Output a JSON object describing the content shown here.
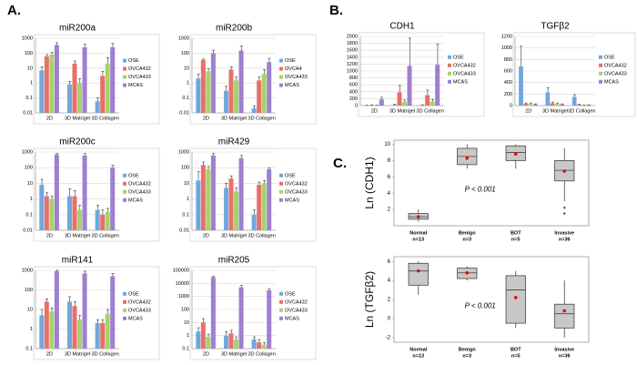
{
  "panel_labels": [
    "A.",
    "B.",
    "C."
  ],
  "chart_data": [
    {
      "type": "bar",
      "title": "miR200a",
      "log_scale": true,
      "grid": true,
      "categories": [
        "2D",
        "3D Matrigel",
        "3D Collagen"
      ],
      "ylim": [
        0.01,
        1000
      ],
      "yticks": [
        0.01,
        0.1,
        1,
        10,
        100,
        1000
      ],
      "series": [
        {
          "name": "OSE",
          "color": "#6fa8dc",
          "values": [
            7,
            0.8,
            0.06
          ],
          "errors": [
            5,
            0.5,
            0.04
          ]
        },
        {
          "name": "OVCA432",
          "color": "#e8706a",
          "values": [
            60,
            20,
            3
          ],
          "errors": [
            20,
            10,
            3
          ]
        },
        {
          "name": "OVCA433",
          "color": "#a8d26a",
          "values": [
            80,
            1,
            20
          ],
          "errors": [
            30,
            1,
            30
          ]
        },
        {
          "name": "MCAS",
          "color": "#9e7fd0",
          "values": [
            350,
            250,
            250
          ],
          "errors": [
            150,
            150,
            200
          ]
        }
      ]
    },
    {
      "type": "bar",
      "title": "miR200b",
      "log_scale": true,
      "grid": true,
      "categories": [
        "2D",
        "3D Matrigel",
        "3D Collagen"
      ],
      "ylim": [
        0.01,
        1000
      ],
      "yticks": [
        0.01,
        0.1,
        1,
        10,
        100,
        1000
      ],
      "series": [
        {
          "name": "OSE",
          "color": "#6fa8dc",
          "values": [
            2,
            0.3,
            0.02
          ],
          "errors": [
            2,
            0.3,
            0.01
          ]
        },
        {
          "name": "OVCA4",
          "color": "#e8706a",
          "values": [
            35,
            8,
            1.5
          ],
          "errors": [
            5,
            4,
            1
          ]
        },
        {
          "name": "OVCA433",
          "color": "#a8d26a",
          "values": [
            6,
            1.5,
            4
          ],
          "errors": [
            3,
            1,
            4
          ]
        },
        {
          "name": "MCAS",
          "color": "#9e7fd0",
          "values": [
            100,
            150,
            25
          ],
          "errors": [
            60,
            150,
            20
          ]
        }
      ]
    },
    {
      "type": "bar",
      "title": "miR200c",
      "log_scale": true,
      "grid": true,
      "categories": [
        "2D",
        "3D Matrigel",
        "3D Collagen"
      ],
      "ylim": [
        0.01,
        1000
      ],
      "yticks": [
        0.01,
        0.1,
        1,
        10,
        100,
        1000
      ],
      "series": [
        {
          "name": "OSE",
          "color": "#6fa8dc",
          "values": [
            8,
            1.5,
            0.2
          ],
          "errors": [
            10,
            3,
            0.2
          ]
        },
        {
          "name": "OVCA432",
          "color": "#e8706a",
          "values": [
            1.5,
            1.5,
            0.1
          ],
          "errors": [
            1,
            2,
            0.1
          ]
        },
        {
          "name": "OVCA433",
          "color": "#a8d26a",
          "values": [
            1,
            0.2,
            0.15
          ],
          "errors": [
            0.5,
            0.2,
            0.1
          ]
        },
        {
          "name": "MCAS",
          "color": "#9e7fd0",
          "values": [
            700,
            600,
            100
          ],
          "errors": [
            100,
            200,
            40
          ]
        }
      ]
    },
    {
      "type": "bar",
      "title": "miR429",
      "log_scale": true,
      "grid": true,
      "categories": [
        "2D",
        "3D Matrigel",
        "3D Collagen"
      ],
      "ylim": [
        0.01,
        1000
      ],
      "yticks": [
        0.01,
        0.1,
        1,
        10,
        100,
        1000
      ],
      "series": [
        {
          "name": "OSE",
          "color": "#6fa8dc",
          "values": [
            15,
            5,
            0.1
          ],
          "errors": [
            40,
            5,
            0.1
          ]
        },
        {
          "name": "OVCA432",
          "color": "#e8706a",
          "values": [
            150,
            20,
            8
          ],
          "errors": [
            80,
            10,
            4
          ]
        },
        {
          "name": "OVCA433",
          "color": "#a8d26a",
          "values": [
            80,
            3,
            10
          ],
          "errors": [
            40,
            2,
            5
          ]
        },
        {
          "name": "MCAS",
          "color": "#9e7fd0",
          "values": [
            600,
            400,
            80
          ],
          "errors": [
            200,
            200,
            20
          ]
        }
      ]
    },
    {
      "type": "bar",
      "title": "miR141",
      "log_scale": true,
      "grid": true,
      "categories": [
        "2D",
        "3D Matrigel",
        "3D Collagen"
      ],
      "ylim": [
        0.1,
        1000
      ],
      "yticks": [
        0.1,
        1,
        10,
        100,
        1000
      ],
      "series": [
        {
          "name": "OSE",
          "color": "#6fa8dc",
          "values": [
            5,
            25,
            2
          ],
          "errors": [
            5,
            20,
            1
          ]
        },
        {
          "name": "OVCA432",
          "color": "#e8706a",
          "values": [
            25,
            15,
            2
          ],
          "errors": [
            10,
            10,
            1
          ]
        },
        {
          "name": "OVCA433",
          "color": "#a8d26a",
          "values": [
            8,
            3,
            6
          ],
          "errors": [
            4,
            2,
            4
          ]
        },
        {
          "name": "MCAS",
          "color": "#9e7fd0",
          "values": [
            900,
            700,
            500
          ],
          "errors": [
            100,
            200,
            200
          ]
        }
      ]
    },
    {
      "type": "bar",
      "title": "miR205",
      "log_scale": true,
      "grid": true,
      "categories": [
        "2D",
        "3D Matrigel",
        "3D Collagen"
      ],
      "ylim": [
        0.1,
        100000
      ],
      "yticks": [
        0.1,
        1,
        10,
        100,
        1000,
        10000,
        100000
      ],
      "series": [
        {
          "name": "OSE",
          "color": "#6fa8dc",
          "values": [
            2,
            1,
            0.5
          ],
          "errors": [
            2,
            1,
            0.3
          ]
        },
        {
          "name": "OVCA432",
          "color": "#e8706a",
          "values": [
            10,
            1.5,
            0.3
          ],
          "errors": [
            10,
            1,
            0.2
          ]
        },
        {
          "name": "OVCA433",
          "color": "#a8d26a",
          "values": [
            0.8,
            0.5,
            0.2
          ],
          "errors": [
            0.5,
            0.3,
            0.1
          ]
        },
        {
          "name": "MCAS",
          "color": "#9e7fd0",
          "values": [
            30000,
            5000,
            3000
          ],
          "errors": [
            5000,
            2000,
            1000
          ]
        }
      ]
    },
    {
      "type": "bar",
      "title": "CDH1",
      "log_scale": false,
      "grid": true,
      "categories": [
        "2D",
        "3D Matrigel",
        "3D Collagen"
      ],
      "ylim": [
        0,
        2000
      ],
      "yticks": [
        0,
        200,
        400,
        600,
        800,
        1000,
        1200,
        1400,
        1600,
        1800,
        2000
      ],
      "series": [
        {
          "name": "OSE",
          "color": "#6fa8dc",
          "values": [
            5,
            20,
            15
          ],
          "errors": [
            5,
            20,
            10
          ]
        },
        {
          "name": "OVCA432",
          "color": "#e8706a",
          "values": [
            10,
            380,
            300
          ],
          "errors": [
            10,
            200,
            150
          ]
        },
        {
          "name": "OVCA433",
          "color": "#a8d26a",
          "values": [
            5,
            100,
            120
          ],
          "errors": [
            5,
            60,
            60
          ]
        },
        {
          "name": "MCAS",
          "color": "#9e7fd0",
          "values": [
            180,
            1150,
            1180
          ],
          "errors": [
            60,
            800,
            600
          ]
        }
      ]
    },
    {
      "type": "bar",
      "title": "TGFβ2",
      "log_scale": false,
      "grid": true,
      "categories": [
        "2D",
        "3D Matrigel",
        "3D Collagen"
      ],
      "ylim": [
        0,
        1200
      ],
      "yticks": [
        0,
        200,
        400,
        600,
        800,
        1000,
        1200
      ],
      "series": [
        {
          "name": "OSE",
          "color": "#6fa8dc",
          "values": [
            680,
            230,
            150
          ],
          "errors": [
            350,
            80,
            40
          ]
        },
        {
          "name": "OVCA432",
          "color": "#e8706a",
          "values": [
            30,
            40,
            15
          ],
          "errors": [
            15,
            20,
            10
          ]
        },
        {
          "name": "OVCA433",
          "color": "#a8d26a",
          "values": [
            30,
            30,
            5
          ],
          "errors": [
            15,
            15,
            5
          ]
        },
        {
          "name": "MCAS",
          "color": "#9e7fd0",
          "values": [
            20,
            20,
            10
          ],
          "errors": [
            10,
            10,
            5
          ]
        }
      ]
    },
    {
      "type": "box",
      "ylabel": "Ln (CDH1)",
      "annotation": "P < 0.001",
      "categories": [
        "Normal",
        "Benign",
        "BOT",
        "Invasive"
      ],
      "n_labels": [
        "n=13",
        "n=3",
        "n=5",
        "n=36"
      ],
      "ylim": [
        0,
        10.5
      ],
      "yticks": [
        2,
        4,
        6,
        8,
        10
      ],
      "boxes": [
        {
          "min": 0.5,
          "q1": 0.8,
          "median": 1.1,
          "q3": 1.5,
          "max": 2,
          "mean": 1.1
        },
        {
          "min": 7,
          "q1": 7.5,
          "median": 8.5,
          "q3": 9.5,
          "max": 10,
          "mean": 8.3
        },
        {
          "min": 7,
          "q1": 8,
          "median": 9,
          "q3": 9.8,
          "max": 10,
          "mean": 8.8
        },
        {
          "min": 3,
          "q1": 5.5,
          "median": 6.8,
          "q3": 8,
          "max": 9.5,
          "mean": 6.7
        }
      ],
      "outliers": [
        [],
        [],
        [],
        [
          2.2,
          1.5
        ]
      ]
    },
    {
      "type": "box",
      "ylabel": "Ln (TGFβ2)",
      "annotation": "P < 0.001",
      "categories": [
        "Normal",
        "Benign",
        "BOT",
        "Invasive"
      ],
      "n_labels": [
        "n=13",
        "n=3",
        "n=5",
        "n=36"
      ],
      "ylim": [
        -2.5,
        6.5
      ],
      "yticks": [
        -2,
        0,
        2,
        4,
        6
      ],
      "boxes": [
        {
          "min": 2.5,
          "q1": 3.5,
          "median": 5,
          "q3": 5.8,
          "max": 6,
          "mean": 5
        },
        {
          "min": 4,
          "q1": 4.2,
          "median": 4.8,
          "q3": 5.3,
          "max": 5.5,
          "mean": 4.8
        },
        {
          "min": -1,
          "q1": -0.5,
          "median": 3,
          "q3": 4.5,
          "max": 5,
          "mean": 2.2
        },
        {
          "min": -2,
          "q1": -1,
          "median": 0.5,
          "q3": 1.5,
          "max": 4,
          "mean": 0.8
        }
      ],
      "outliers": [
        [],
        [],
        [],
        []
      ]
    }
  ]
}
